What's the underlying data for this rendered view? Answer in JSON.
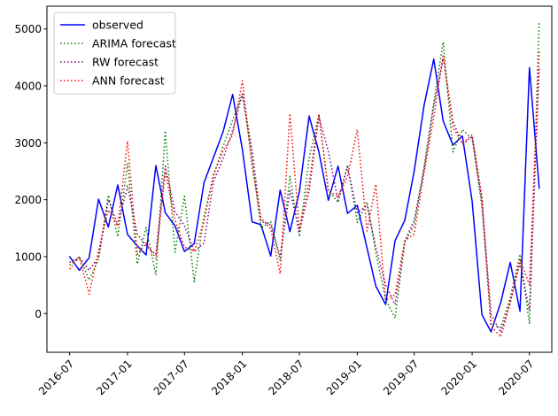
{
  "chart_data": {
    "type": "line",
    "title": "",
    "xlabel": "",
    "ylabel": "",
    "ylim": [
      -680,
      5400
    ],
    "xlim": [
      "2016-04-20",
      "2020-09-10"
    ],
    "grid": false,
    "legend_position": "upper-left",
    "yticks": [
      0,
      1000,
      2000,
      3000,
      4000,
      5000
    ],
    "xticks": [
      "2016-07",
      "2017-01",
      "2017-07",
      "2018-01",
      "2018-07",
      "2019-01",
      "2019-07",
      "2020-01",
      "2020-07"
    ],
    "x": [
      "2016-07",
      "2016-08",
      "2016-09",
      "2016-10",
      "2016-11",
      "2016-12",
      "2017-01",
      "2017-02",
      "2017-03",
      "2017-04",
      "2017-05",
      "2017-06",
      "2017-07",
      "2017-08",
      "2017-09",
      "2017-10",
      "2017-11",
      "2017-12",
      "2018-01",
      "2018-02",
      "2018-03",
      "2018-04",
      "2018-05",
      "2018-06",
      "2018-07",
      "2018-08",
      "2018-09",
      "2018-10",
      "2018-11",
      "2018-12",
      "2019-01",
      "2019-02",
      "2019-03",
      "2019-04",
      "2019-05",
      "2019-06",
      "2019-07",
      "2019-08",
      "2019-09",
      "2019-10",
      "2019-11",
      "2019-12",
      "2020-01",
      "2020-02",
      "2020-03",
      "2020-04",
      "2020-05",
      "2020-06",
      "2020-07",
      "2020-08"
    ],
    "series": [
      {
        "name": "observed",
        "color": "#0000ff",
        "style": "solid",
        "values": [
          1000,
          760,
          980,
          2010,
          1520,
          2260,
          1390,
          1190,
          1030,
          2600,
          1770,
          1540,
          1090,
          1230,
          2300,
          2740,
          3200,
          3850,
          2880,
          1610,
          1560,
          1010,
          2170,
          1440,
          2140,
          3470,
          2840,
          1990,
          2590,
          1760,
          1900,
          1150,
          480,
          160,
          1280,
          1640,
          2510,
          3650,
          4470,
          3380,
          2960,
          3120,
          1970,
          -20,
          -320,
          200,
          900,
          40,
          4320,
          2200
        ]
      },
      {
        "name": "ARIMA forecast",
        "color": "#008000",
        "style": "dotted",
        "values": [
          850,
          1000,
          590,
          950,
          2080,
          1350,
          2630,
          870,
          1510,
          680,
          3210,
          1080,
          2060,
          560,
          1720,
          2410,
          2940,
          3400,
          3860,
          2700,
          1500,
          1620,
          930,
          2410,
          1350,
          2730,
          3500,
          2170,
          1950,
          2610,
          1600,
          1960,
          1070,
          250,
          -80,
          1260,
          1560,
          2580,
          3700,
          4770,
          2840,
          3230,
          3070,
          1880,
          -200,
          -240,
          280,
          1040,
          -180,
          5130
        ]
      },
      {
        "name": "RW forecast",
        "color": "#800080",
        "style": "dotted",
        "values": [
          900,
          980,
          760,
          1000,
          2000,
          1560,
          2240,
          1400,
          1190,
          1040,
          2590,
          1790,
          1540,
          1090,
          1240,
          2320,
          2730,
          3220,
          3860,
          2870,
          1620,
          1560,
          1010,
          2160,
          1450,
          2150,
          3460,
          2850,
          1990,
          2580,
          1770,
          1900,
          1160,
          500,
          160,
          1270,
          1650,
          2510,
          3640,
          4480,
          3380,
          2970,
          3110,
          1970,
          -20,
          -330,
          200,
          890,
          50,
          4310
        ]
      },
      {
        "name": "ANN forecast",
        "color": "#ff0000",
        "style": "dotted",
        "values": [
          780,
          990,
          340,
          1110,
          1820,
          1540,
          3030,
          1040,
          1240,
          970,
          2490,
          1640,
          1170,
          1090,
          1610,
          2450,
          2860,
          3140,
          4090,
          2570,
          1680,
          1490,
          700,
          3510,
          1480,
          2300,
          3510,
          2150,
          2060,
          2410,
          3230,
          1450,
          2270,
          230,
          330,
          1280,
          1400,
          2470,
          3440,
          4550,
          3270,
          2990,
          3140,
          2060,
          -220,
          -410,
          190,
          960,
          500,
          4620
        ]
      }
    ]
  }
}
